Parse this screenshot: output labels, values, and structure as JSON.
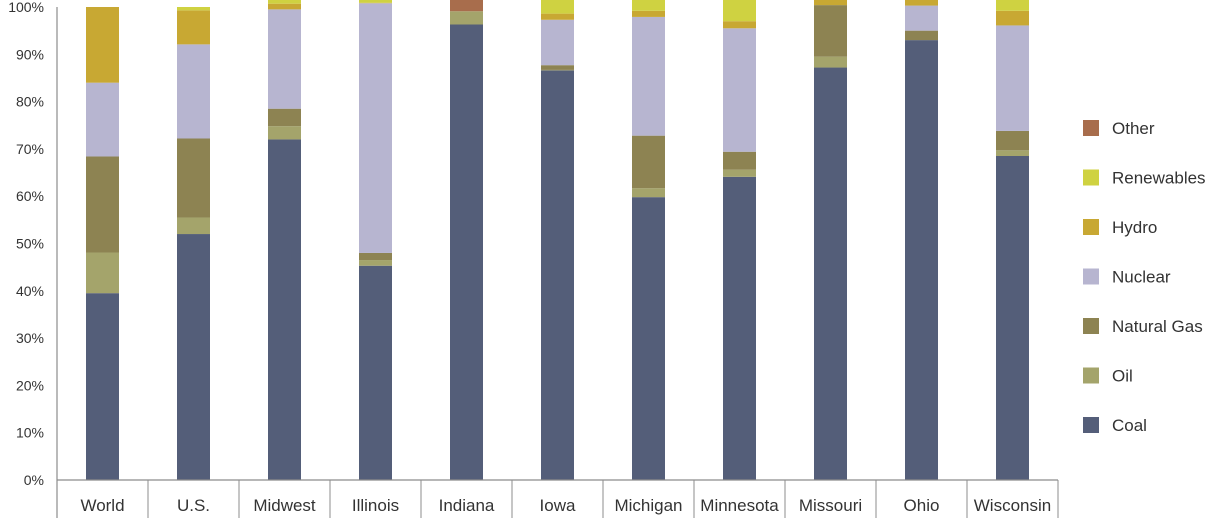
{
  "chart_data": {
    "type": "bar",
    "stacked": true,
    "title": "",
    "xlabel": "",
    "ylabel": "",
    "ylim": [
      0,
      100
    ],
    "y_ticks": [
      "0%",
      "10%",
      "20%",
      "30%",
      "40%",
      "50%",
      "60%",
      "70%",
      "80%",
      "90%",
      "100%"
    ],
    "grid": false,
    "legend_position": "right",
    "categories": [
      "World",
      "U.S.",
      "Midwest",
      "Illinois",
      "Indiana",
      "Iowa",
      "Michigan",
      "Minnesota",
      "Missouri",
      "Ohio",
      "Wisconsin"
    ],
    "series": [
      {
        "name": "Coal",
        "color": "#545e79",
        "values": [
          39.5,
          52,
          72,
          45.3,
          96.3,
          86.6,
          59.8,
          64.1,
          87.2,
          93,
          68.5
        ]
      },
      {
        "name": "Oil",
        "color": "#a4a46b",
        "values": [
          8.6,
          3.5,
          2.8,
          1.2,
          2.8,
          0.1,
          1.9,
          1.5,
          2.3,
          0,
          1.2
        ]
      },
      {
        "name": "Natural Gas",
        "color": "#8d8352",
        "values": [
          20.3,
          16.7,
          3.7,
          1.5,
          0,
          1,
          11.1,
          3.8,
          10.9,
          2,
          4.1
        ]
      },
      {
        "name": "Nuclear",
        "color": "#b7b5d0",
        "values": [
          15.6,
          19.9,
          21,
          52.8,
          0,
          9.6,
          25.1,
          26.1,
          0,
          5.3,
          22.3
        ]
      },
      {
        "name": "Hydro",
        "color": "#c8a833",
        "values": [
          16,
          7.2,
          1.2,
          0.1,
          0,
          1.3,
          1.3,
          1.5,
          1.5,
          1.7,
          3.1
        ]
      },
      {
        "name": "Renewables",
        "color": "#cfd241",
        "values": [
          0,
          0.7,
          1.3,
          1.1,
          0,
          3.8,
          2.4,
          5.2,
          0,
          0,
          3.2
        ]
      },
      {
        "name": "Other",
        "color": "#a86d4c",
        "values": [
          0,
          0,
          0,
          0,
          3.2,
          0,
          0,
          0,
          0,
          0,
          0
        ]
      }
    ]
  }
}
